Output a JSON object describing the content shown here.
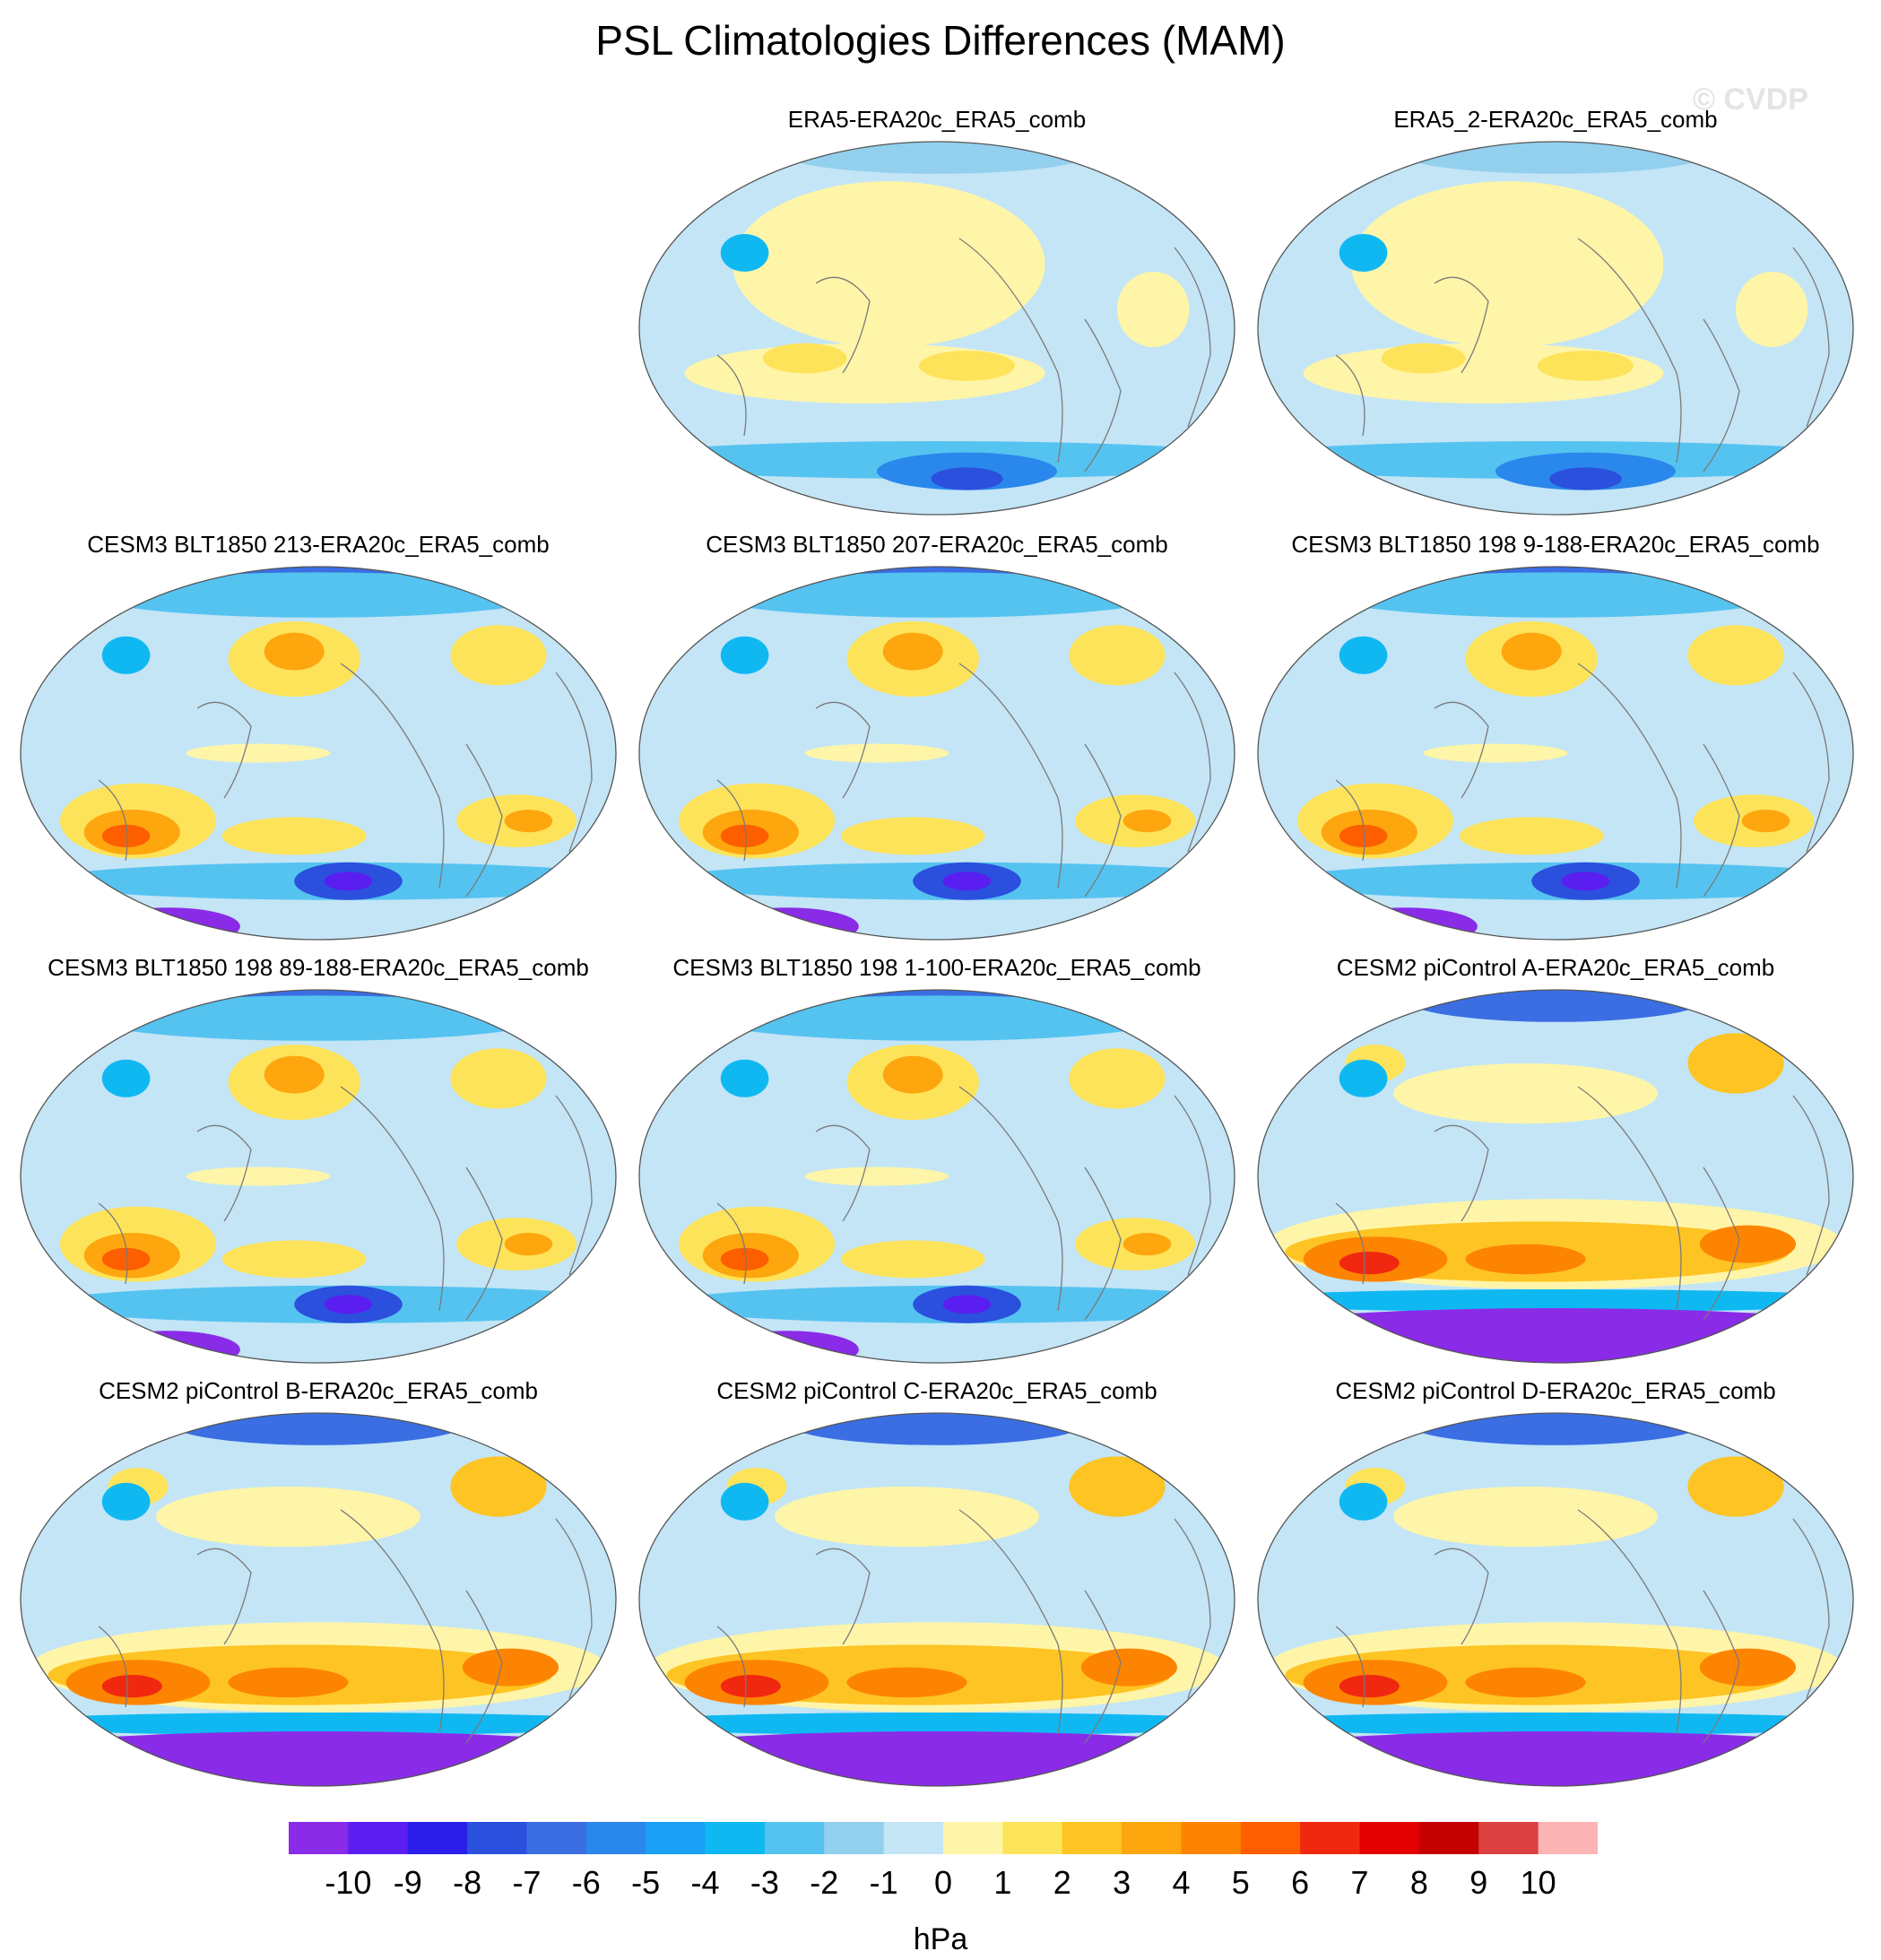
{
  "title": "PSL Climatologies Differences (MAM)",
  "watermark": "© CVDP",
  "panels": [
    {
      "label": "ERA5-ERA20c_ERA5_comb",
      "regime": "obs"
    },
    {
      "label": "ERA5_2-ERA20c_ERA5_comb",
      "regime": "obs"
    },
    {
      "label": "CESM3 BLT1850 213-ERA20c_ERA5_comb",
      "regime": "cesm3"
    },
    {
      "label": "CESM3 BLT1850 207-ERA20c_ERA5_comb",
      "regime": "cesm3"
    },
    {
      "label": "CESM3 BLT1850 198 9-188-ERA20c_ERA5_comb",
      "regime": "cesm3"
    },
    {
      "label": "CESM3 BLT1850 198 89-188-ERA20c_ERA5_comb",
      "regime": "cesm3"
    },
    {
      "label": "CESM3 BLT1850 198 1-100-ERA20c_ERA5_comb",
      "regime": "cesm3"
    },
    {
      "label": "CESM2 piControl A-ERA20c_ERA5_comb",
      "regime": "cesm2"
    },
    {
      "label": "CESM2 piControl B-ERA20c_ERA5_comb",
      "regime": "cesm2"
    },
    {
      "label": "CESM2 piControl C-ERA20c_ERA5_comb",
      "regime": "cesm2"
    },
    {
      "label": "CESM2 piControl D-ERA20c_ERA5_comb",
      "regime": "cesm2"
    }
  ],
  "colorbar": {
    "unit": "hPa",
    "levels": [
      "-10",
      "-9",
      "-8",
      "-7",
      "-6",
      "-5",
      "-4",
      "-3",
      "-2",
      "-1",
      "0",
      "1",
      "2",
      "3",
      "4",
      "5",
      "6",
      "7",
      "8",
      "9",
      "10"
    ],
    "colors": [
      "#8a2be8",
      "#5a1ef0",
      "#2b1ee8",
      "#2b50dd",
      "#3a6ee2",
      "#2a87eb",
      "#1aa0f5",
      "#10b8f2",
      "#55c3f0",
      "#93d0ee",
      "#c3e5f6",
      "#fff5a8",
      "#fde35a",
      "#fdc424",
      "#fda60e",
      "#fd8400",
      "#fc5e00",
      "#f02810",
      "#e20000",
      "#c40000",
      "#dc4040",
      "#fcb4b4"
    ]
  }
}
